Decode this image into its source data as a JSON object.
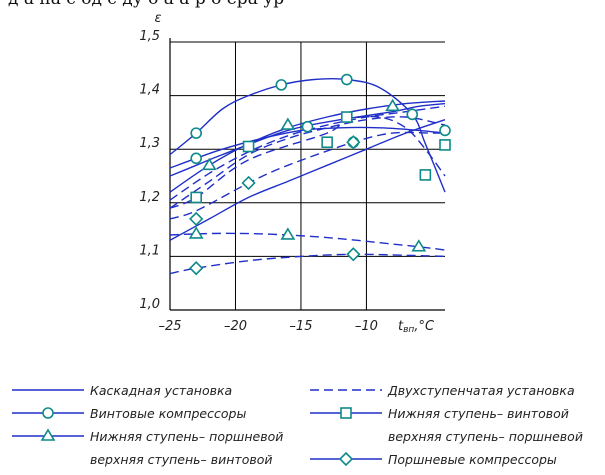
{
  "header_fragment": "д  а  на  с  од  с  ду  о  а   а    р     о   ера  ур",
  "chart_data": {
    "type": "line",
    "ylabel": "ε",
    "xlabel": "t",
    "xlabel_subscript": "вп",
    "xlabel_unit": ",°C",
    "xlim": [
      -25,
      -4
    ],
    "ylim": [
      1.0,
      1.5
    ],
    "x_ticks": [
      -25,
      -20,
      -15,
      -10
    ],
    "x_tick_labels": [
      "–25",
      "–20",
      "–15",
      "–10"
    ],
    "y_ticks": [
      1.0,
      1.1,
      1.2,
      1.3,
      1.4,
      1.5
    ],
    "y_tick_labels": [
      "1,0",
      "1,1",
      "1,2",
      "1,3",
      "1,4",
      "1,5"
    ],
    "grid": true,
    "legend_position": "below",
    "color": "#1f2fc8",
    "series": [
      {
        "name": "Каскадная установка",
        "style": "solid",
        "marker": "none",
        "x": [
          -25,
          -22,
          -19,
          -16,
          -13,
          -10,
          -7,
          -4
        ],
        "y": [
          1.22,
          1.27,
          1.31,
          1.34,
          1.36,
          1.375,
          1.385,
          1.39
        ]
      },
      {
        "name": "Каскадная установка",
        "style": "solid",
        "marker": "none",
        "x": [
          -25,
          -22,
          -19,
          -16,
          -13,
          -10,
          -7,
          -4
        ],
        "y": [
          1.13,
          1.17,
          1.21,
          1.24,
          1.27,
          1.3,
          1.33,
          1.355
        ]
      },
      {
        "name": "Двухступенчатая установка",
        "style": "dashed",
        "marker": "none",
        "x": [
          -25,
          -22,
          -19,
          -16,
          -13,
          -10,
          -7,
          -4
        ],
        "y": [
          1.205,
          1.255,
          1.295,
          1.325,
          1.345,
          1.36,
          1.37,
          1.38
        ]
      },
      {
        "name": "Двухступенчатая установка",
        "style": "dashed",
        "marker": "none",
        "x": [
          -25,
          -22,
          -19,
          -16,
          -13,
          -10,
          -7,
          -4
        ],
        "y": [
          1.19,
          1.24,
          1.29,
          1.32,
          1.34,
          1.355,
          1.36,
          1.345
        ]
      },
      {
        "name": "Винтовые компрессоры",
        "style": "solid",
        "marker": "circle",
        "x": [
          -25,
          -23,
          -21,
          -19,
          -16.5,
          -14,
          -11.5,
          -9,
          -6.5,
          -5.5,
          -4
        ],
        "y": [
          1.29,
          1.33,
          1.375,
          1.4,
          1.42,
          1.43,
          1.43,
          1.415,
          1.365,
          1.31,
          1.22
        ],
        "marker_x": [
          -23,
          -16.5,
          -11.5,
          -6.5
        ],
        "marker_y": [
          1.33,
          1.42,
          1.43,
          1.365
        ]
      },
      {
        "name": "Винтовые компрессоры",
        "style": "solid",
        "marker": "circle",
        "x": [
          -25,
          -23,
          -21,
          -18,
          -15,
          -12,
          -9,
          -6,
          -4
        ],
        "y": [
          1.265,
          1.283,
          1.3,
          1.32,
          1.335,
          1.34,
          1.34,
          1.335,
          1.33
        ],
        "marker_x": [
          -23,
          -14.5,
          -11,
          -4
        ],
        "marker_y": [
          1.283,
          1.342,
          1.313,
          1.335
        ]
      },
      {
        "name": "Нижняя ступень– винтовой верхняя ступень– поршневой",
        "style": "dashed",
        "marker": "square",
        "x": [
          -25,
          -23,
          -19,
          -13,
          -11.5,
          -9,
          -7,
          -5.5,
          -4
        ],
        "y": [
          1.19,
          1.21,
          1.28,
          1.33,
          1.355,
          1.36,
          1.34,
          1.3,
          1.25
        ],
        "marker_x": [
          -23,
          -19,
          -13,
          -11.5,
          -5.5,
          -4
        ],
        "marker_y": [
          1.21,
          1.305,
          1.313,
          1.36,
          1.252,
          1.308
        ]
      },
      {
        "name": "Нижняя ступень– поршневой верхняя ступень– винтовой",
        "style": "solid",
        "marker": "triangle",
        "x": [
          -25,
          -23,
          -21,
          -16,
          -12,
          -8,
          -6,
          -4
        ],
        "y": [
          1.25,
          1.27,
          1.29,
          1.335,
          1.355,
          1.37,
          1.38,
          1.385
        ],
        "marker_x": [
          -22,
          -16,
          -8
        ],
        "marker_y": [
          1.27,
          1.345,
          1.38
        ]
      },
      {
        "name": "Нижняя ступень– поршневой верхняя ступень– винтовой",
        "style": "dashed",
        "marker": "triangle",
        "x": [
          -25,
          -23,
          -20,
          -16,
          -12,
          -8,
          -6,
          -4
        ],
        "y": [
          1.14,
          1.142,
          1.143,
          1.14,
          1.133,
          1.123,
          1.118,
          1.112
        ],
        "marker_x": [
          -23,
          -16,
          -6
        ],
        "marker_y": [
          1.142,
          1.14,
          1.118
        ]
      },
      {
        "name": "Поршневые компрессоры",
        "style": "dashed",
        "marker": "diamond",
        "x": [
          -25,
          -23,
          -19,
          -16,
          -11,
          -8,
          -5,
          -4
        ],
        "y": [
          1.17,
          1.185,
          1.237,
          1.27,
          1.313,
          1.33,
          1.33,
          1.33
        ],
        "marker_x": [
          -23,
          -19,
          -11
        ],
        "marker_y": [
          1.17,
          1.237,
          1.313
        ]
      },
      {
        "name": "Поршневые компрессоры",
        "style": "dashed",
        "marker": "diamond",
        "x": [
          -25,
          -23,
          -19,
          -15,
          -11,
          -7,
          -4
        ],
        "y": [
          1.068,
          1.078,
          1.092,
          1.1,
          1.104,
          1.102,
          1.1
        ],
        "marker_x": [
          -23,
          -11
        ],
        "marker_y": [
          1.078,
          1.104
        ]
      }
    ],
    "legend": [
      {
        "label": "Каскадная установка",
        "style": "solid",
        "marker": "none"
      },
      {
        "label": "Двухступенчатая установка",
        "style": "dashed",
        "marker": "none"
      },
      {
        "label": "Винтовые компрессоры",
        "style": "solid",
        "marker": "circle"
      },
      {
        "label": "Нижняя ступень– винтовой",
        "label2": "верхняя ступень– поршневой",
        "style": "solid",
        "marker": "square"
      },
      {
        "label": "Нижняя ступень– поршневой",
        "label2": "верхняя ступень– винтовой",
        "style": "solid",
        "marker": "triangle"
      },
      {
        "label": "Поршневые компрессоры",
        "style": "solid",
        "marker": "diamond"
      }
    ]
  }
}
